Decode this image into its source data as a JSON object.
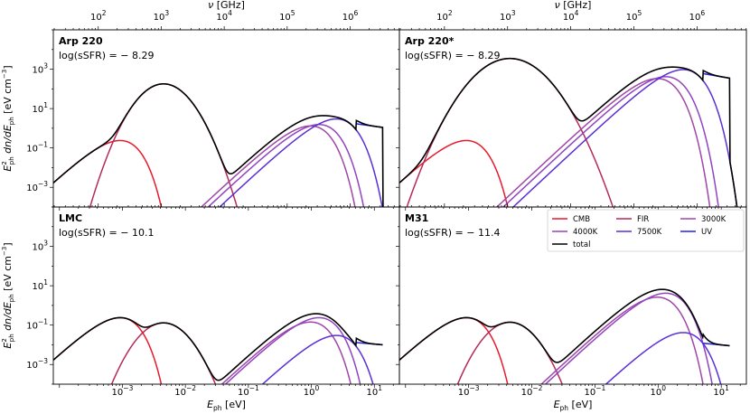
{
  "chart_data": {
    "type": "line",
    "x_axis": {
      "label": "E_ph [eV]",
      "scale": "log",
      "range": [
        8e-05,
        25
      ],
      "ticks": [
        "10^-3",
        "10^-2",
        "10^-1",
        "10^0",
        "10^1"
      ]
    },
    "top_axis": {
      "label": "ν [GHz]",
      "scale": "log",
      "ticks": [
        "10^2",
        "10^3",
        "10^4",
        "10^5",
        "10^6"
      ]
    },
    "y_axis": {
      "label": "E_ph^2 dn/dE_ph [eV cm^-3]",
      "scale": "log",
      "range": [
        0.0001,
        100000
      ],
      "ticks": [
        "10^-3",
        "10^-1",
        "10^1",
        "10^3"
      ]
    },
    "legend": {
      "placement": "top-right of M31 panel",
      "entries": [
        {
          "name": "CMB",
          "color": "#e8192c"
        },
        {
          "name": "FIR",
          "color": "#b52a5a"
        },
        {
          "name": "3000K",
          "color": "#a046a8"
        },
        {
          "name": "4000K",
          "color": "#9044c0"
        },
        {
          "name": "7500K",
          "color": "#5a2fd6"
        },
        {
          "name": "UV",
          "color": "#2222e8"
        },
        {
          "name": "total",
          "color": "#000000"
        }
      ]
    },
    "panels": [
      {
        "id": "arp220",
        "name": "Arp 220",
        "ssfr_label": "log(sSFR) = − 8.29",
        "components": [
          {
            "name": "CMB",
            "peak_e": 0.00066,
            "peak_y": 0.2
          },
          {
            "name": "FIR",
            "peak_e": 0.0045,
            "peak_y": 180,
            "width": 0.33
          },
          {
            "name": "3000K",
            "peak_e": 0.7,
            "peak_y": 1.1
          },
          {
            "name": "4000K",
            "peak_e": 0.95,
            "peak_y": 1.3
          },
          {
            "name": "7500K",
            "peak_e": 1.8,
            "peak_y": 2.5
          },
          {
            "name": "UV",
            "band": [
              5.1,
              13.6
            ],
            "level": [
              1.7,
              1.1
            ]
          }
        ]
      },
      {
        "id": "arp220star",
        "name": "Arp 220*",
        "ssfr_label": "log(sSFR) = − 8.29",
        "components": [
          {
            "name": "CMB",
            "peak_e": 0.00066,
            "peak_y": 0.2
          },
          {
            "name": "FIR",
            "peak_e": 0.0045,
            "peak_y": 3500,
            "width": 0.42
          },
          {
            "name": "3000K",
            "peak_e": 0.7,
            "peak_y": 280
          },
          {
            "name": "4000K",
            "peak_e": 0.95,
            "peak_y": 350
          },
          {
            "name": "7500K",
            "peak_e": 1.8,
            "peak_y": 800
          },
          {
            "name": "UV",
            "band": [
              5.1,
              13.6
            ],
            "level": [
              600,
              350
            ]
          }
        ]
      },
      {
        "id": "lmc",
        "name": "LMC",
        "ssfr_label": "log(sSFR) = − 10.1",
        "components": [
          {
            "name": "CMB",
            "peak_e": 0.00066,
            "peak_y": 0.2
          },
          {
            "name": "FIR",
            "peak_e": 0.0045,
            "peak_y": 0.13,
            "width": 0.33
          },
          {
            "name": "3000K",
            "peak_e": 0.7,
            "peak_y": 0.12
          },
          {
            "name": "4000K",
            "peak_e": 0.95,
            "peak_y": 0.2
          },
          {
            "name": "7500K",
            "peak_e": 1.8,
            "peak_y": 0.025
          },
          {
            "name": "UV",
            "band": [
              5.1,
              13.6
            ],
            "level": [
              0.013,
              0.01
            ]
          }
        ]
      },
      {
        "id": "m31",
        "name": "M31",
        "ssfr_label": "log(sSFR) = − 11.4",
        "components": [
          {
            "name": "CMB",
            "peak_e": 0.00066,
            "peak_y": 0.2
          },
          {
            "name": "FIR",
            "peak_e": 0.0045,
            "peak_y": 0.14,
            "width": 0.33
          },
          {
            "name": "3000K",
            "peak_e": 0.7,
            "peak_y": 2.2
          },
          {
            "name": "4000K",
            "peak_e": 0.95,
            "peak_y": 3.5
          },
          {
            "name": "7500K",
            "peak_e": 1.8,
            "peak_y": 0.035
          },
          {
            "name": "UV",
            "band": [
              5.1,
              13.6
            ],
            "level": [
              0.012,
              0.009
            ]
          }
        ]
      }
    ]
  }
}
